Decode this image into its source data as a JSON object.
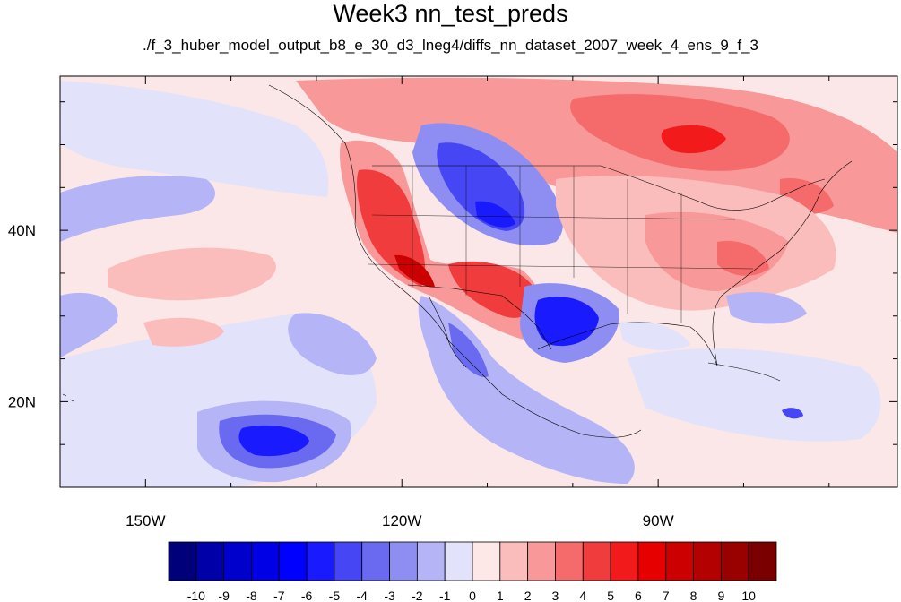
{
  "title": "Week3 nn_test_preds",
  "subtitle": "./f_3_huber_model_output_b8_e_30_d3_lneg4/diffs_nn_dataset_2007_week_4_ens_9_f_3",
  "map": {
    "lon_range": [
      -160,
      -62
    ],
    "lat_range": [
      10,
      58
    ],
    "x_ticks": [
      {
        "lon": -150,
        "label": "150W"
      },
      {
        "lon": -120,
        "label": "120W"
      },
      {
        "lon": -90,
        "label": "90W"
      }
    ],
    "y_ticks": [
      {
        "lat": 40,
        "label": "40N"
      },
      {
        "lat": 20,
        "label": "20N"
      }
    ],
    "background_color": "#fbe7e7"
  },
  "colorbar": {
    "colors": [
      "#00007b",
      "#0000a8",
      "#0000cc",
      "#0000e6",
      "#0000ff",
      "#1a1aff",
      "#4646f5",
      "#6a6af0",
      "#8e8ef2",
      "#b4b4f7",
      "#e2e2fa",
      "#fde7e7",
      "#fbbcbc",
      "#f89898",
      "#f56a6a",
      "#f03c3c",
      "#f21a1a",
      "#e60000",
      "#cc0000",
      "#b30000",
      "#990000",
      "#7a0000"
    ],
    "labels": [
      "-10",
      "-9",
      "-8",
      "-7",
      "-6",
      "-5",
      "-4",
      "-3",
      "-2",
      "-1",
      "0",
      "1",
      "2",
      "3",
      "4",
      "5",
      "6",
      "7",
      "8",
      "9",
      "10"
    ]
  }
}
